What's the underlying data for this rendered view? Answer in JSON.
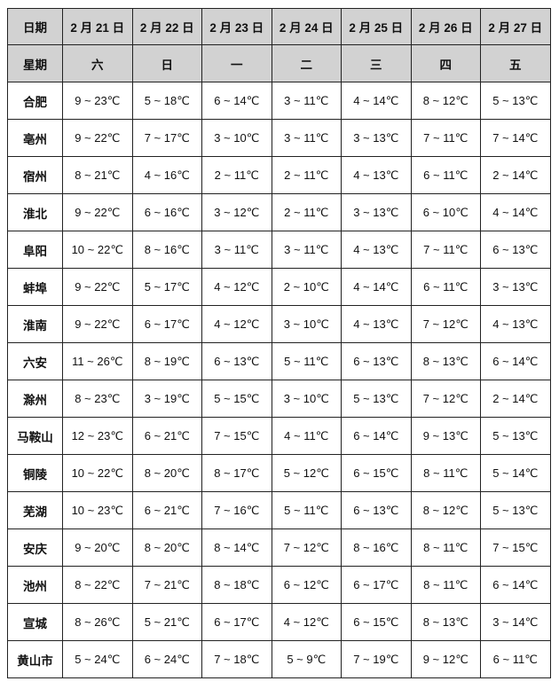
{
  "table": {
    "date_label": "日期",
    "weekday_label": "星期",
    "dates": [
      "2 月 21 日",
      "2 月 22 日",
      "2 月 23 日",
      "2 月 24 日",
      "2 月 25 日",
      "2 月 26 日",
      "2 月 27 日"
    ],
    "weekdays": [
      "六",
      "日",
      "一",
      "二",
      "三",
      "四",
      "五"
    ],
    "rows": [
      {
        "city": "合肥",
        "temps": [
          "9 ~ 23℃",
          "5 ~ 18℃",
          "6 ~ 14℃",
          "3 ~ 11℃",
          "4 ~ 14℃",
          "8 ~ 12℃",
          "5 ~ 13℃"
        ]
      },
      {
        "city": "亳州",
        "temps": [
          "9 ~ 22℃",
          "7 ~ 17℃",
          "3 ~ 10℃",
          "3 ~ 11℃",
          "3 ~ 13℃",
          "7 ~ 11℃",
          "7 ~ 14℃"
        ]
      },
      {
        "city": "宿州",
        "temps": [
          "8 ~ 21℃",
          "4 ~ 16℃",
          "2 ~ 11℃",
          "2 ~ 11℃",
          "4 ~ 13℃",
          "6 ~ 11℃",
          "2 ~ 14℃"
        ]
      },
      {
        "city": "淮北",
        "temps": [
          "9 ~ 22℃",
          "6 ~ 16℃",
          "3 ~ 12℃",
          "2 ~ 11℃",
          "3 ~ 13℃",
          "6 ~ 10℃",
          "4 ~ 14℃"
        ]
      },
      {
        "city": "阜阳",
        "temps": [
          "10 ~ 22℃",
          "8 ~ 16℃",
          "3 ~ 11℃",
          "3 ~ 11℃",
          "4 ~ 13℃",
          "7 ~ 11℃",
          "6 ~ 13℃"
        ]
      },
      {
        "city": "蚌埠",
        "temps": [
          "9 ~ 22℃",
          "5 ~ 17℃",
          "4 ~ 12℃",
          "2 ~ 10℃",
          "4 ~ 14℃",
          "6 ~ 11℃",
          "3 ~ 13℃"
        ]
      },
      {
        "city": "淮南",
        "temps": [
          "9 ~ 22℃",
          "6 ~ 17℃",
          "4 ~ 12℃",
          "3 ~ 10℃",
          "4 ~ 13℃",
          "7 ~ 12℃",
          "4 ~ 13℃"
        ]
      },
      {
        "city": "六安",
        "temps": [
          "11 ~ 26℃",
          "8 ~ 19℃",
          "6 ~ 13℃",
          "5 ~ 11℃",
          "6 ~ 13℃",
          "8 ~ 13℃",
          "6 ~ 14℃"
        ]
      },
      {
        "city": "滁州",
        "temps": [
          "8 ~ 23℃",
          "3 ~ 19℃",
          "5 ~ 15℃",
          "3 ~ 10℃",
          "5 ~ 13℃",
          "7 ~ 12℃",
          "2 ~ 14℃"
        ]
      },
      {
        "city": "马鞍山",
        "temps": [
          "12 ~ 23℃",
          "6 ~ 21℃",
          "7 ~ 15℃",
          "4 ~ 11℃",
          "6 ~ 14℃",
          "9 ~ 13℃",
          "5 ~ 13℃"
        ]
      },
      {
        "city": "铜陵",
        "temps": [
          "10 ~ 22℃",
          "8 ~ 20℃",
          "8 ~ 17℃",
          "5 ~ 12℃",
          "6 ~ 15℃",
          "8 ~ 11℃",
          "5 ~ 14℃"
        ]
      },
      {
        "city": "芜湖",
        "temps": [
          "10 ~ 23℃",
          "6 ~ 21℃",
          "7 ~ 16℃",
          "5 ~ 11℃",
          "6 ~ 13℃",
          "8 ~ 12℃",
          "5 ~ 13℃"
        ]
      },
      {
        "city": "安庆",
        "temps": [
          "9 ~ 20℃",
          "8 ~ 20℃",
          "8 ~ 14℃",
          "7 ~ 12℃",
          "8 ~ 16℃",
          "8 ~ 11℃",
          "7 ~ 15℃"
        ]
      },
      {
        "city": "池州",
        "temps": [
          "8 ~ 22℃",
          "7 ~ 21℃",
          "8 ~ 18℃",
          "6 ~ 12℃",
          "6 ~ 17℃",
          "8 ~ 11℃",
          "6 ~ 14℃"
        ]
      },
      {
        "city": "宣城",
        "temps": [
          "8 ~ 26℃",
          "5 ~ 21℃",
          "6 ~ 17℃",
          "4 ~ 12℃",
          "6 ~ 15℃",
          "8 ~ 13℃",
          "3 ~ 14℃"
        ]
      },
      {
        "city": "黄山市",
        "temps": [
          "5 ~ 24℃",
          "6 ~ 24℃",
          "7 ~ 18℃",
          "5 ~ 9℃",
          "7 ~ 19℃",
          "9 ~ 12℃",
          "6 ~ 11℃"
        ]
      }
    ]
  }
}
